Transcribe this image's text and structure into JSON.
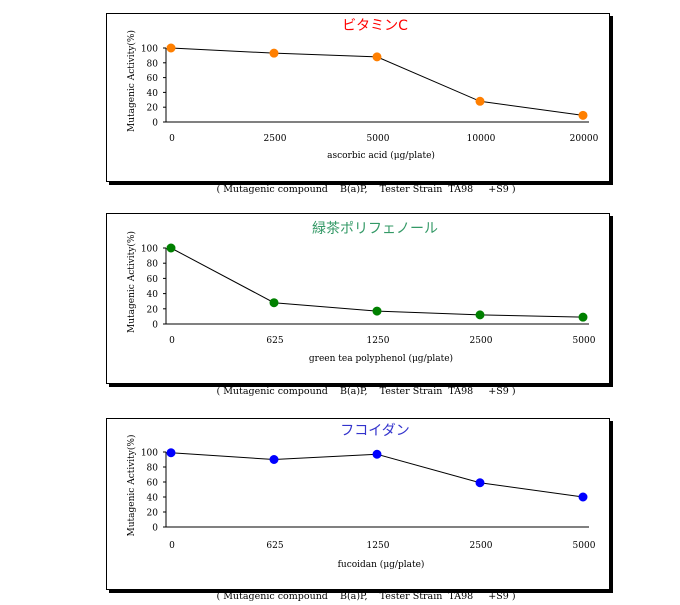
{
  "chart_data": [
    {
      "type": "line",
      "title": "ビタミンC",
      "title_color": "#ff0000",
      "marker_color": "#ff7f00",
      "xlabel": "ascorbic acid (μg/plate)",
      "ylabel": "Mutagenic Activity(%)",
      "categories": [
        "0",
        "2500",
        "5000",
        "10000",
        "20000"
      ],
      "values": [
        100,
        93,
        88,
        28,
        9
      ],
      "yticks": [
        "0",
        "20",
        "40",
        "60",
        "80",
        "100"
      ],
      "ylim": [
        0,
        100
      ],
      "grid": false,
      "caption": "( Mutagenic compound    B(a)P,    Tester Strain  TA98     +S9 )"
    },
    {
      "type": "line",
      "title": "緑茶ポリフェノール",
      "title_color": "#339966",
      "marker_color": "#008000",
      "xlabel": "green tea polyphenol (μg/plate)",
      "ylabel": "Mutagenic Activity(%)",
      "categories": [
        "0",
        "625",
        "1250",
        "2500",
        "5000"
      ],
      "values": [
        100,
        28,
        17,
        12,
        9
      ],
      "yticks": [
        "0",
        "20",
        "40",
        "60",
        "80",
        "100"
      ],
      "ylim": [
        0,
        100
      ],
      "grid": false,
      "caption": "( Mutagenic compound    B(a)P,    Tester Strain  TA98     +S9 )"
    },
    {
      "type": "line",
      "title": "フコイダン",
      "title_color": "#3333cc",
      "marker_color": "#0000ff",
      "xlabel": "fucoidan (μg/plate)",
      "ylabel": "Mutagenic Activity(%)",
      "categories": [
        "0",
        "625",
        "1250",
        "2500",
        "5000"
      ],
      "values": [
        99,
        90,
        97,
        59,
        40
      ],
      "yticks": [
        "0",
        "20",
        "40",
        "60",
        "80",
        "100"
      ],
      "ylim": [
        0,
        100
      ],
      "grid": false,
      "caption": "( Mutagenic compound    B(a)P,    Tester Strain  TA98     +S9 )"
    }
  ]
}
